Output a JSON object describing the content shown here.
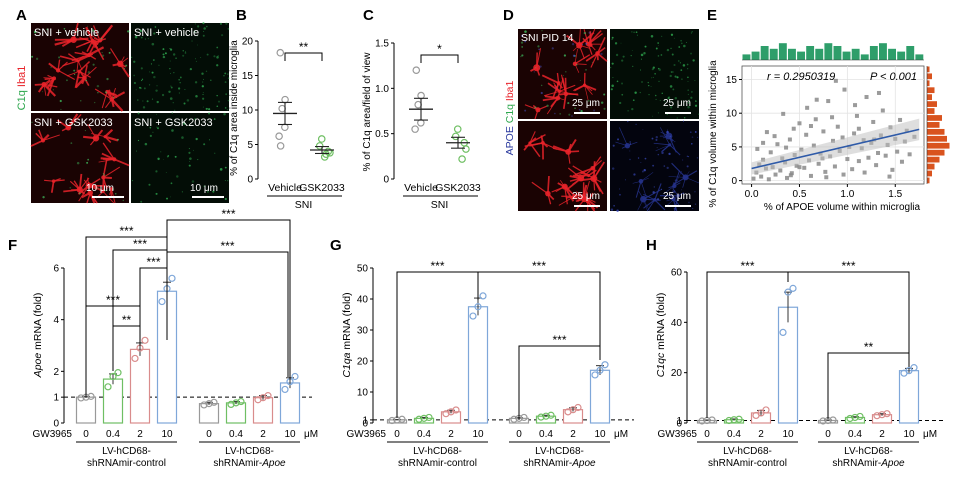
{
  "colors": {
    "grey": "#999999",
    "green": "#6fbf63",
    "pink": "#d98c8c",
    "blue": "#7fa7d9",
    "micro_red": "#e8232a",
    "c1q_green": "#2fa84f",
    "apoe_blue": "#2b3a9e",
    "hist_green": "#2e9e6a",
    "hist_orange": "#d9531e",
    "fit_line": "#2e5aa8"
  },
  "panelA": {
    "letter": "A",
    "side_label_c1q": "C1q",
    "side_label_iba1": "Iba1",
    "tiles": [
      {
        "label": "SNI + vehicle",
        "channel": "merge-red"
      },
      {
        "label": "SNI + vehicle",
        "channel": "green"
      },
      {
        "label": "SNI + GSK2033",
        "channel": "merge-red"
      },
      {
        "label": "SNI + GSK2033",
        "channel": "green"
      }
    ],
    "scalebars": [
      "10 μm",
      "10 μm"
    ]
  },
  "panelB": {
    "letter": "B",
    "chart_data": {
      "type": "scatter",
      "ylabel": "% of C1q area inside microglia",
      "ylim": [
        0,
        20
      ],
      "yticks": [
        "0",
        "5",
        "10",
        "15",
        "20"
      ],
      "categories": [
        "Vehicle",
        "GSK2033"
      ],
      "group_label": "SNI",
      "sig": "**",
      "series": [
        {
          "category": "Vehicle",
          "mean": 9.5,
          "sem": 1.6,
          "points": [
            18.3,
            11.5,
            10.2,
            7.5,
            6.2,
            4.8
          ]
        },
        {
          "category": "GSK2033",
          "mean": 4.2,
          "sem": 0.5,
          "points": [
            5.8,
            4.8,
            4.0,
            3.8,
            3.6,
            3.2
          ]
        }
      ]
    }
  },
  "panelC": {
    "letter": "C",
    "chart_data": {
      "type": "scatter",
      "ylabel": "% of C1q area/field of view",
      "ylim": [
        0,
        1.5
      ],
      "yticks": [
        "0",
        "0.5",
        "1.0",
        "1.5"
      ],
      "categories": [
        "Vehicle",
        "GSK2033"
      ],
      "group_label": "SNI",
      "sig": "*",
      "series": [
        {
          "category": "Vehicle",
          "mean": 0.77,
          "sem": 0.12,
          "points": [
            1.2,
            0.92,
            0.82,
            0.62,
            0.55
          ]
        },
        {
          "category": "GSK2033",
          "mean": 0.4,
          "sem": 0.06,
          "points": [
            0.55,
            0.47,
            0.4,
            0.33,
            0.22
          ]
        }
      ]
    }
  },
  "panelD": {
    "letter": "D",
    "side_label_apoe": "APOE",
    "side_label_c1q": "C1q",
    "side_label_iba1": "Iba1",
    "title": "SNI PID 14",
    "scalebars": [
      "25 μm",
      "25 μm",
      "25 μm",
      "25 μm"
    ]
  },
  "panelE": {
    "letter": "E",
    "chart_data": {
      "type": "scatter",
      "xlabel": "% of APOE volume within microglia",
      "ylabel": "% of C1q volume within microglia",
      "xlim": [
        -0.1,
        1.8
      ],
      "ylim": [
        -0.5,
        17
      ],
      "xticks": [
        "0.0",
        "0.5",
        "1.0",
        "1.5"
      ],
      "yticks": [
        "0",
        "5",
        "10",
        "15"
      ],
      "stat_r": "r = 0.2950319",
      "stat_p": "P < 0.001",
      "fit": {
        "x0": 0.0,
        "y0": 1.8,
        "x1": 1.75,
        "y1": 7.6
      },
      "points": [
        [
          0.02,
          0.3
        ],
        [
          0.05,
          1.2
        ],
        [
          0.08,
          2.4
        ],
        [
          0.1,
          0.6
        ],
        [
          0.12,
          3.1
        ],
        [
          0.15,
          1.8
        ],
        [
          0.18,
          0.2
        ],
        [
          0.2,
          4.2
        ],
        [
          0.22,
          2.0
        ],
        [
          0.25,
          0.9
        ],
        [
          0.27,
          5.4
        ],
        [
          0.3,
          1.5
        ],
        [
          0.32,
          3.3
        ],
        [
          0.35,
          2.7
        ],
        [
          0.37,
          0.4
        ],
        [
          0.4,
          6.1
        ],
        [
          0.42,
          1.1
        ],
        [
          0.45,
          3.8
        ],
        [
          0.47,
          2.2
        ],
        [
          0.5,
          8.5
        ],
        [
          0.52,
          4.6
        ],
        [
          0.55,
          1.9
        ],
        [
          0.57,
          6.8
        ],
        [
          0.6,
          3.0
        ],
        [
          0.62,
          0.7
        ],
        [
          0.65,
          5.2
        ],
        [
          0.67,
          9.1
        ],
        [
          0.7,
          2.5
        ],
        [
          0.72,
          4.0
        ],
        [
          0.75,
          7.3
        ],
        [
          0.77,
          1.3
        ],
        [
          0.8,
          11.8
        ],
        [
          0.82,
          3.6
        ],
        [
          0.85,
          5.9
        ],
        [
          0.87,
          2.1
        ],
        [
          0.9,
          8.0
        ],
        [
          0.92,
          4.4
        ],
        [
          0.95,
          6.4
        ],
        [
          0.97,
          13.5
        ],
        [
          1.0,
          3.2
        ],
        [
          1.02,
          5.0
        ],
        [
          1.05,
          1.7
        ],
        [
          1.07,
          7.0
        ],
        [
          1.1,
          9.6
        ],
        [
          1.12,
          2.9
        ],
        [
          1.15,
          4.8
        ],
        [
          1.17,
          6.0
        ],
        [
          1.2,
          12.4
        ],
        [
          1.22,
          3.4
        ],
        [
          1.25,
          5.6
        ],
        [
          1.27,
          8.7
        ],
        [
          1.3,
          2.3
        ],
        [
          1.32,
          4.1
        ],
        [
          1.35,
          6.7
        ],
        [
          1.37,
          10.4
        ],
        [
          1.4,
          3.7
        ],
        [
          1.42,
          5.3
        ],
        [
          1.45,
          7.9
        ],
        [
          1.47,
          1.6
        ],
        [
          1.5,
          6.2
        ],
        [
          1.52,
          4.3
        ],
        [
          1.55,
          9.0
        ],
        [
          1.57,
          2.8
        ],
        [
          1.6,
          5.8
        ],
        [
          1.62,
          7.4
        ],
        [
          1.65,
          3.9
        ],
        [
          1.7,
          6.5
        ],
        [
          0.33,
          9.9
        ],
        [
          0.58,
          10.8
        ],
        [
          0.88,
          14.8
        ],
        [
          0.12,
          5.6
        ],
        [
          0.44,
          7.7
        ],
        [
          0.68,
          12.0
        ],
        [
          1.08,
          11.2
        ],
        [
          1.33,
          13.0
        ],
        [
          0.24,
          6.6
        ],
        [
          0.5,
          2.0
        ],
        [
          0.74,
          3.3
        ],
        [
          0.96,
          0.9
        ],
        [
          1.18,
          1.2
        ],
        [
          1.44,
          0.6
        ],
        [
          0.06,
          4.7
        ],
        [
          0.36,
          4.9
        ],
        [
          0.62,
          8.1
        ],
        [
          0.84,
          9.4
        ],
        [
          1.12,
          7.7
        ],
        [
          1.28,
          6.1
        ],
        [
          0.16,
          7.2
        ],
        [
          0.41,
          0.8
        ],
        [
          0.78,
          0.5
        ]
      ]
    }
  },
  "panelF": {
    "letter": "F",
    "chart_data": {
      "type": "bar",
      "ylabel_gene": "Apoe",
      "ylabel_rest": " mRNA (fold)",
      "ylim": [
        0,
        6
      ],
      "yticks": [
        "0",
        "1",
        "2",
        "4",
        "6"
      ],
      "ytick_values": [
        0,
        1,
        2,
        4,
        6
      ],
      "baseline": 1,
      "treatment_label": "GW3965",
      "unit": "μM",
      "doses": [
        "0",
        "0.4",
        "2",
        "10"
      ],
      "groups": [
        {
          "line1": "LV-hCD68-",
          "line2": "shRNAmir-control",
          "italic": false
        },
        {
          "line1": "LV-hCD68-",
          "line2a": "shRNAmir-",
          "line2b": "Apoe",
          "italic": true
        }
      ],
      "series": [
        {
          "group": 0,
          "values": [
            1.0,
            1.7,
            2.85,
            5.1
          ],
          "sem": [
            0.03,
            0.2,
            0.25,
            0.35
          ],
          "points": [
            [
              0.97,
              1.0,
              1.03
            ],
            [
              1.4,
              1.8,
              1.95
            ],
            [
              2.5,
              2.9,
              3.2
            ],
            [
              4.7,
              5.2,
              5.6
            ]
          ]
        },
        {
          "group": 1,
          "values": [
            0.75,
            0.78,
            0.98,
            1.55
          ],
          "sem": [
            0.05,
            0.05,
            0.08,
            0.2
          ],
          "points": [
            [
              0.7,
              0.75,
              0.8
            ],
            [
              0.72,
              0.78,
              0.83
            ],
            [
              0.9,
              0.98,
              1.06
            ],
            [
              1.3,
              1.6,
              1.8
            ]
          ]
        }
      ],
      "sig": [
        "***",
        "***",
        "***",
        "***",
        "***",
        "***",
        "**"
      ]
    }
  },
  "panelG": {
    "letter": "G",
    "chart_data": {
      "type": "bar",
      "ylabel_gene": "C1qa",
      "ylabel_rest": " mRNA (fold)",
      "ylim": [
        0,
        50
      ],
      "yticks": [
        "0",
        "1",
        "10",
        "20",
        "30",
        "40",
        "50"
      ],
      "ytick_values": [
        0,
        1,
        10,
        20,
        30,
        40,
        50
      ],
      "baseline": 1,
      "treatment_label": "GW3965",
      "unit": "μM",
      "doses": [
        "0",
        "0.4",
        "2",
        "10"
      ],
      "groups": [
        {
          "line1": "LV-hCD68-",
          "line2": "shRNAmir-control",
          "italic": false
        },
        {
          "line1": "LV-hCD68-",
          "line2a": "shRNAmir-",
          "line2b": "Apoe",
          "italic": true
        }
      ],
      "series": [
        {
          "group": 0,
          "values": [
            1.0,
            1.5,
            3.6,
            37.5
          ],
          "sem": [
            0.1,
            0.3,
            0.5,
            2.8
          ],
          "points": [
            [
              0.8,
              1.0,
              1.2
            ],
            [
              1.2,
              1.5,
              1.8
            ],
            [
              3.0,
              3.6,
              4.2
            ],
            [
              34.5,
              37.5,
              41
            ]
          ]
        },
        {
          "group": 1,
          "values": [
            1.5,
            2.2,
            4.3,
            17.0
          ],
          "sem": [
            0.2,
            0.3,
            0.6,
            1.5
          ],
          "points": [
            [
              1.2,
              1.5,
              1.8
            ],
            [
              1.9,
              2.2,
              2.5
            ],
            [
              3.6,
              4.3,
              5.0
            ],
            [
              15.5,
              17,
              18.8
            ]
          ]
        }
      ],
      "sig": [
        "***",
        "***",
        "***"
      ]
    }
  },
  "panelH": {
    "letter": "H",
    "chart_data": {
      "type": "bar",
      "ylabel_gene": "C1qc",
      "ylabel_rest": " mRNA (fold)",
      "ylim": [
        0,
        60
      ],
      "yticks": [
        "0",
        "1",
        "20",
        "40",
        "60"
      ],
      "ytick_values": [
        0,
        1,
        20,
        40,
        60
      ],
      "baseline": 1,
      "treatment_label": "GW3965",
      "unit": "μM",
      "doses": [
        "0",
        "0.4",
        "2",
        "10"
      ],
      "groups": [
        {
          "line1": "LV-hCD68-",
          "line2": "shRNAmir-control",
          "italic": false
        },
        {
          "line1": "LV-hCD68-",
          "line2a": "shRNAmir-",
          "line2b": "Apoe",
          "italic": true
        }
      ],
      "series": [
        {
          "group": 0,
          "values": [
            1.0,
            1.3,
            4.0,
            46.0
          ],
          "sem": [
            0.2,
            0.3,
            1.0,
            6.0
          ],
          "points": [
            [
              0.8,
              1.0,
              1.2
            ],
            [
              1.0,
              1.3,
              1.5
            ],
            [
              3.0,
              4.0,
              5.2
            ],
            [
              36,
              52,
              53.5
            ]
          ]
        },
        {
          "group": 1,
          "values": [
            1.0,
            2.2,
            3.3,
            20.8
          ],
          "sem": [
            0.2,
            0.3,
            0.4,
            0.9
          ],
          "points": [
            [
              0.8,
              1.0,
              1.2
            ],
            [
              1.8,
              2.2,
              2.6
            ],
            [
              2.9,
              3.3,
              3.7
            ],
            [
              19.8,
              20.8,
              22
            ]
          ]
        }
      ],
      "sig": [
        "***",
        "***",
        "**"
      ]
    }
  }
}
